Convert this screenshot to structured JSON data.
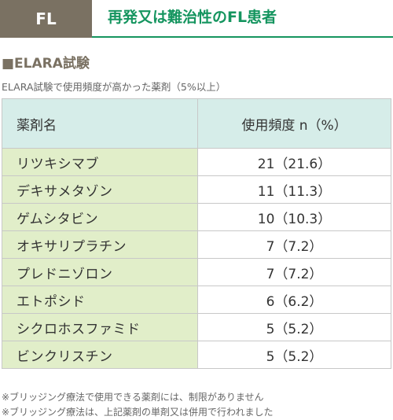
{
  "header": {
    "tag": "FL",
    "title": "再発又は難治性のFL患者"
  },
  "section": {
    "title": "■ELARA試験",
    "subtitle": "ELARA試験で使用頻度が高かった薬剤（5%以上）"
  },
  "table": {
    "columns": [
      "薬剤名",
      "使用頻度 n（%）"
    ],
    "rows": [
      {
        "drug": "リツキシマブ",
        "frequency": "21（21.6）"
      },
      {
        "drug": "デキサメタゾン",
        "frequency": "11（11.3）"
      },
      {
        "drug": "ゲムシタビン",
        "frequency": "10（10.3）"
      },
      {
        "drug": "オキサリプラチン",
        "frequency": "7（7.2）"
      },
      {
        "drug": "プレドニゾロン",
        "frequency": "7（7.2）"
      },
      {
        "drug": "エトポシド",
        "frequency": "6（6.2）"
      },
      {
        "drug": "シクロホスファミド",
        "frequency": "5（5.2）"
      },
      {
        "drug": "ビンクリスチン",
        "frequency": "5（5.2）"
      }
    ]
  },
  "notes": [
    "※ブリッジング療法で使用できる薬剤には、制限がありません",
    "※ブリッジング療法は、上記薬剤の単剤又は併用で行われました"
  ],
  "colors": {
    "tag_bg": "#7a7162",
    "title": "#15955f",
    "header_row_bg": "#d6ede9",
    "name_col_bg": "#e1eec9"
  }
}
